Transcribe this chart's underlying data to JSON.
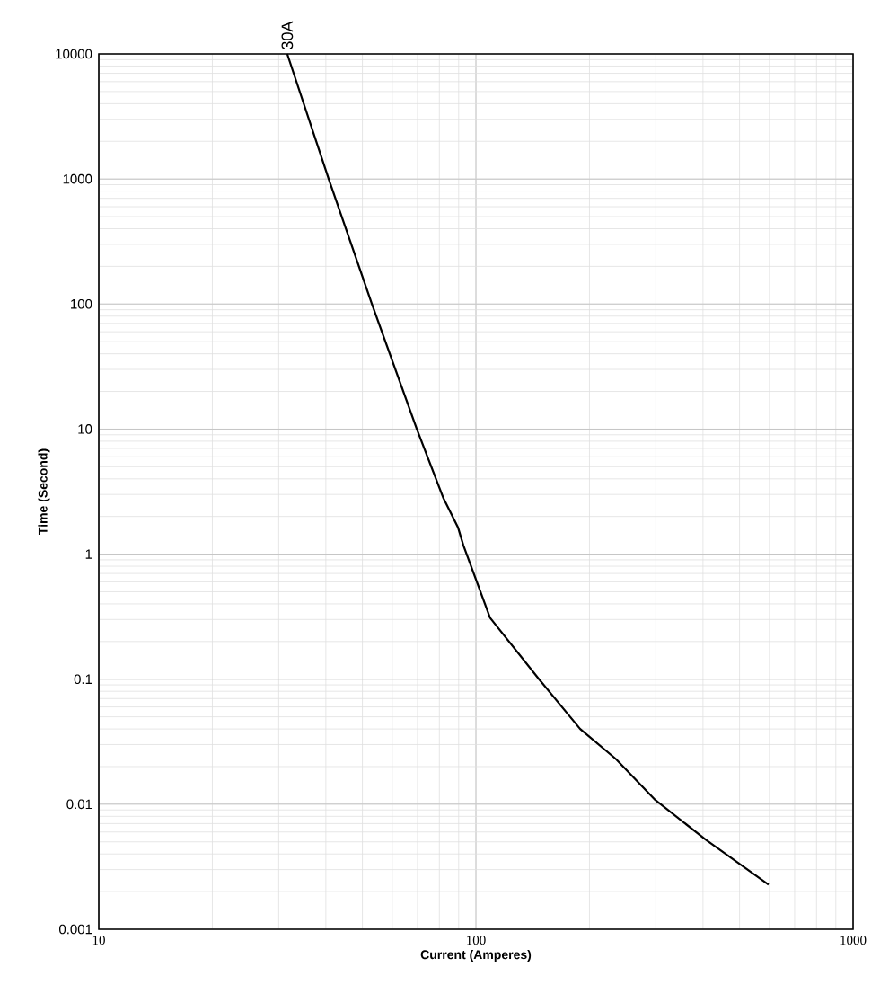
{
  "chart_data": {
    "type": "line",
    "xlabel": "Current  (Amperes)",
    "ylabel": "Time (Second)",
    "log": "xy",
    "grid": true,
    "xlim": [
      10,
      1000
    ],
    "ylim": [
      0.001,
      10000
    ],
    "xticks": [
      10,
      100,
      1000
    ],
    "yticks": [
      0.001,
      0.01,
      0.1,
      1,
      10,
      100,
      1000,
      10000
    ],
    "annotations": [
      {
        "text": "30A",
        "x": 31.6,
        "y": 10000
      }
    ],
    "series": [
      {
        "color": "#000000",
        "x": [
          31.6,
          40.7,
          53,
          69.7,
          82,
          89.6,
          92.6,
          109,
          147,
          189,
          235,
          299,
          407,
          597
        ],
        "values": [
          10000,
          1000,
          100,
          10,
          2.8,
          1.64,
          1.18,
          0.31,
          0.1,
          0.04,
          0.023,
          0.0108,
          0.0052,
          0.00227
        ]
      }
    ]
  }
}
